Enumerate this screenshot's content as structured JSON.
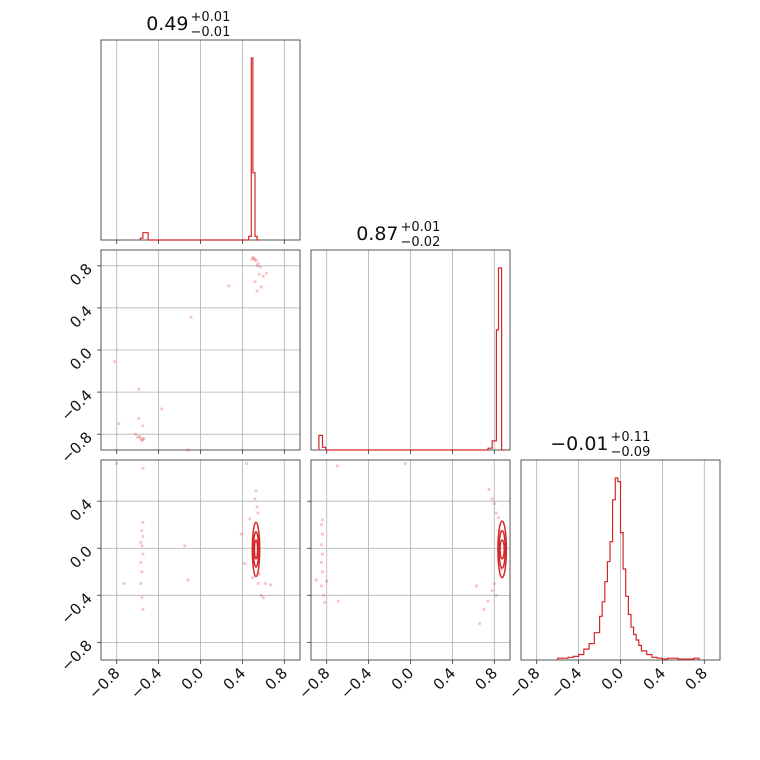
{
  "accent_color": "#d62728",
  "chart_data": {
    "type": "corner",
    "parameter_range": [
      -0.95,
      0.95
    ],
    "axis_range_p3": [
      -0.95,
      0.75
    ],
    "ticks": [
      "−0.8",
      "−0.4",
      "0.0",
      "0.4",
      "0.8"
    ],
    "tick_values": [
      -0.8,
      -0.4,
      0.0,
      0.4,
      0.8
    ],
    "titles": [
      {
        "value": "0.49",
        "plus": "+0.01",
        "minus": "−0.01"
      },
      {
        "value": "0.87",
        "plus": "+0.01",
        "minus": "−0.02"
      },
      {
        "value": "−0.01",
        "plus": "+0.11",
        "minus": "−0.09"
      }
    ],
    "histograms": [
      {
        "bin_edges": [
          -0.575,
          -0.55,
          -0.525,
          -0.5,
          0.46,
          0.485,
          0.5,
          0.52,
          0.54,
          0.56
        ],
        "counts": [
          0.01,
          0.04,
          0.04,
          0,
          0.02,
          1.0,
          0.37,
          0.02,
          0
        ]
      },
      {
        "bin_edges": [
          -0.875,
          -0.84,
          -0.81,
          0.74,
          0.78,
          0.82,
          0.84,
          0.87,
          0.9
        ],
        "counts": [
          0.08,
          0.015,
          0,
          0.01,
          0.05,
          0.66,
          1.0,
          0
        ]
      },
      {
        "bin_edges": [
          -0.6,
          -0.5,
          -0.45,
          -0.4,
          -0.35,
          -0.3,
          -0.25,
          -0.2,
          -0.175,
          -0.15,
          -0.125,
          -0.1,
          -0.075,
          -0.05,
          -0.025,
          0.0,
          0.025,
          0.05,
          0.075,
          0.1,
          0.125,
          0.15,
          0.175,
          0.2,
          0.25,
          0.3,
          0.35,
          0.4,
          0.45,
          0.55,
          0.7,
          0.75
        ],
        "counts": [
          0.01,
          0.015,
          0.02,
          0.03,
          0.06,
          0.09,
          0.15,
          0.24,
          0.32,
          0.43,
          0.54,
          0.65,
          0.88,
          1.0,
          0.98,
          0.7,
          0.5,
          0.35,
          0.25,
          0.18,
          0.14,
          0.11,
          0.08,
          0.05,
          0.03,
          0.015,
          0.01,
          0.005,
          0.01,
          0.005,
          0.01
        ]
      }
    ],
    "scatter": {
      "p2_vs_p1": [
        {
          "x": 0.5,
          "y": 0.88
        },
        {
          "x": 0.51,
          "y": 0.87
        },
        {
          "x": 0.52,
          "y": 0.86
        },
        {
          "x": 0.53,
          "y": 0.85
        },
        {
          "x": 0.55,
          "y": 0.82
        },
        {
          "x": 0.54,
          "y": 0.8
        },
        {
          "x": 0.57,
          "y": 0.79
        },
        {
          "x": 0.49,
          "y": 0.86
        },
        {
          "x": 0.56,
          "y": 0.72
        },
        {
          "x": 0.6,
          "y": 0.7
        },
        {
          "x": 0.52,
          "y": 0.65
        },
        {
          "x": 0.58,
          "y": 0.6
        },
        {
          "x": 0.63,
          "y": 0.73
        },
        {
          "x": 0.54,
          "y": 0.56
        },
        {
          "x": 0.27,
          "y": 0.61
        },
        {
          "x": -0.09,
          "y": 0.31
        },
        {
          "x": -0.82,
          "y": -0.11
        },
        {
          "x": -0.59,
          "y": -0.37
        },
        {
          "x": -0.37,
          "y": -0.56
        },
        {
          "x": -0.54,
          "y": -0.84
        },
        {
          "x": -0.55,
          "y": -0.85
        },
        {
          "x": -0.56,
          "y": -0.86
        },
        {
          "x": -0.57,
          "y": -0.84
        },
        {
          "x": -0.58,
          "y": -0.82
        },
        {
          "x": -0.6,
          "y": -0.83
        },
        {
          "x": -0.62,
          "y": -0.8
        },
        {
          "x": -0.55,
          "y": -0.72
        },
        {
          "x": -0.59,
          "y": -0.65
        },
        {
          "x": -0.78,
          "y": -0.7
        },
        {
          "x": -0.12,
          "y": -0.95
        }
      ],
      "p3_vs_p1": [
        {
          "x": -0.55,
          "y": -0.05
        },
        {
          "x": -0.56,
          "y": 0.02
        },
        {
          "x": -0.55,
          "y": 0.1
        },
        {
          "x": -0.56,
          "y": 0.15
        },
        {
          "x": -0.55,
          "y": 0.22
        },
        {
          "x": -0.57,
          "y": -0.12
        },
        {
          "x": -0.56,
          "y": -0.2
        },
        {
          "x": -0.57,
          "y": -0.3
        },
        {
          "x": -0.56,
          "y": -0.42
        },
        {
          "x": -0.55,
          "y": -0.52
        },
        {
          "x": -0.57,
          "y": 0.05
        },
        {
          "x": -0.73,
          "y": -0.3
        },
        {
          "x": -0.15,
          "y": 0.02
        },
        {
          "x": -0.12,
          "y": -0.27
        },
        {
          "x": -0.55,
          "y": 0.68
        },
        {
          "x": -0.8,
          "y": 0.72
        },
        {
          "x": 0.52,
          "y": 0.42
        },
        {
          "x": 0.53,
          "y": 0.49
        },
        {
          "x": 0.54,
          "y": 0.35
        },
        {
          "x": 0.55,
          "y": 0.3
        },
        {
          "x": 0.56,
          "y": -0.22
        },
        {
          "x": 0.55,
          "y": -0.3
        },
        {
          "x": 0.58,
          "y": -0.4
        },
        {
          "x": 0.6,
          "y": -0.42
        },
        {
          "x": 0.62,
          "y": -0.3
        },
        {
          "x": 0.5,
          "y": -0.25
        },
        {
          "x": 0.47,
          "y": 0.25
        },
        {
          "x": 0.39,
          "y": 0.12
        },
        {
          "x": 0.42,
          "y": -0.13
        },
        {
          "x": 0.67,
          "y": -0.31
        },
        {
          "x": 0.44,
          "y": 0.72
        }
      ],
      "p3_vs_p2": [
        {
          "x": -0.84,
          "y": -0.05
        },
        {
          "x": -0.85,
          "y": 0.03
        },
        {
          "x": -0.84,
          "y": 0.12
        },
        {
          "x": -0.85,
          "y": 0.2
        },
        {
          "x": -0.84,
          "y": 0.24
        },
        {
          "x": -0.85,
          "y": -0.12
        },
        {
          "x": -0.84,
          "y": -0.2
        },
        {
          "x": -0.85,
          "y": -0.32
        },
        {
          "x": -0.83,
          "y": -0.4
        },
        {
          "x": -0.82,
          "y": -0.46
        },
        {
          "x": -0.8,
          "y": -0.28
        },
        {
          "x": -0.69,
          "y": -0.45
        },
        {
          "x": -0.9,
          "y": -0.27
        },
        {
          "x": 0.75,
          "y": 0.5
        },
        {
          "x": 0.78,
          "y": 0.42
        },
        {
          "x": 0.8,
          "y": 0.38
        },
        {
          "x": 0.82,
          "y": 0.3
        },
        {
          "x": 0.84,
          "y": 0.26
        },
        {
          "x": 0.8,
          "y": -0.3
        },
        {
          "x": 0.78,
          "y": -0.36
        },
        {
          "x": 0.82,
          "y": -0.4
        },
        {
          "x": 0.74,
          "y": -0.45
        },
        {
          "x": 0.7,
          "y": -0.52
        },
        {
          "x": 0.66,
          "y": -0.64
        },
        {
          "x": 0.63,
          "y": -0.32
        },
        {
          "x": 0.86,
          "y": -0.18
        },
        {
          "x": 0.85,
          "y": 0.15
        },
        {
          "x": -0.7,
          "y": 0.7
        },
        {
          "x": -0.05,
          "y": 0.72
        }
      ]
    },
    "contours": {
      "p3_vs_p1": [
        {
          "cx": 0.53,
          "cy": -0.01,
          "rx": 0.035,
          "ry": 0.23
        },
        {
          "cx": 0.53,
          "cy": -0.01,
          "rx": 0.025,
          "ry": 0.15
        },
        {
          "cx": 0.53,
          "cy": -0.01,
          "rx": 0.015,
          "ry": 0.08
        }
      ],
      "p3_vs_p2": [
        {
          "cx": 0.875,
          "cy": -0.01,
          "rx": 0.04,
          "ry": 0.24
        },
        {
          "cx": 0.875,
          "cy": -0.01,
          "rx": 0.03,
          "ry": 0.16
        },
        {
          "cx": 0.875,
          "cy": -0.01,
          "rx": 0.02,
          "ry": 0.08
        }
      ]
    }
  }
}
